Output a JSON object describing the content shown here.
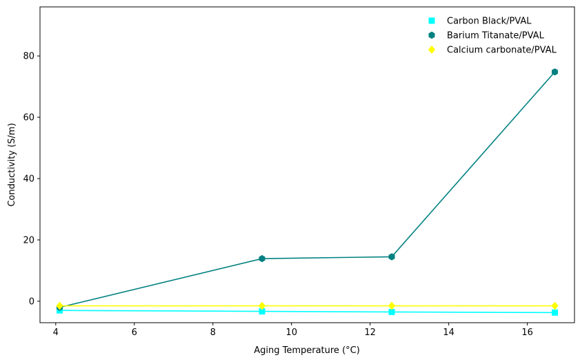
{
  "chart_data": {
    "type": "line",
    "title": "",
    "xlabel": "Aging Temperature (°C)",
    "ylabel": "Conductivity (S/m)",
    "x": [
      4.1,
      9.25,
      12.55,
      16.7
    ],
    "xlim": [
      3.6,
      17.2
    ],
    "ylim": [
      -7.0,
      96.0
    ],
    "xticks": [
      4,
      6,
      8,
      10,
      12,
      14,
      16
    ],
    "yticks": [
      0,
      20,
      40,
      60,
      80
    ],
    "grid": false,
    "legend_position": "top-right",
    "series": [
      {
        "name": "Carbon Black/PVAL",
        "marker": "square",
        "color": "#00ffff",
        "values": [
          -3.0,
          -3.3,
          -3.5,
          -3.7
        ]
      },
      {
        "name": "Barium Titanate/PVAL",
        "marker": "hexagon",
        "color": "#008080",
        "values": [
          -2.0,
          13.9,
          14.5,
          74.8
        ]
      },
      {
        "name": "Calcium carbonate/PVAL",
        "marker": "diamond",
        "color": "#ffff00",
        "values": [
          -1.5,
          -1.5,
          -1.5,
          -1.5
        ]
      }
    ]
  }
}
